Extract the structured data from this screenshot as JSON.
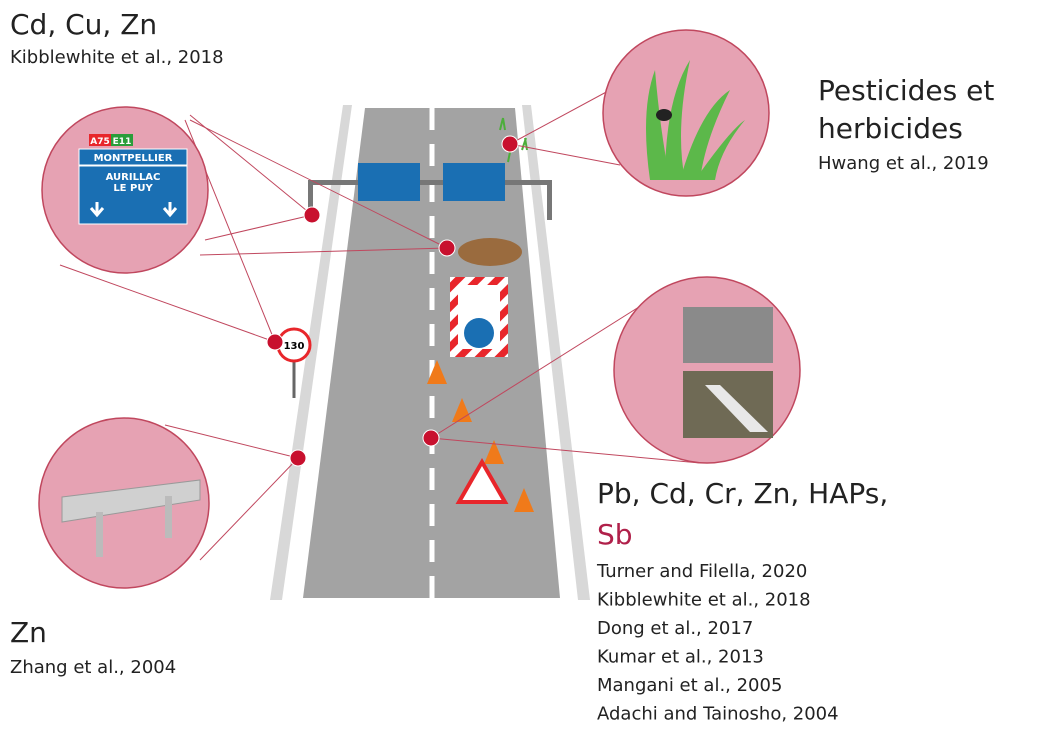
{
  "top_left": {
    "pollutants": "Cd, Cu, Zn",
    "reference": "Kibblewhite et al., 2018"
  },
  "top_right": {
    "pollutants": [
      "Pesticides et",
      "herbicides"
    ],
    "reference": "Hwang et al., 2019"
  },
  "bottom_right": {
    "pollutants": "Pb, Cd, Cr, Zn, HAPs,",
    "highlight": "Sb",
    "references": [
      "Turner and Filella, 2020",
      "Kibblewhite et al., 2018",
      "Dong et al., 2017",
      "Kumar et al., 2013",
      "Mangani et al., 2005",
      "Adachi and Tainosho, 2004"
    ]
  },
  "bottom_left": {
    "pollutants": "Zn",
    "reference": "Zhang et al., 2004"
  },
  "sign": {
    "road_a": "A75",
    "road_e": "E11",
    "destination": "MONTPELLIER",
    "line1": "AURILLAC",
    "line2": "LE PUY"
  },
  "speed_sign": "130"
}
